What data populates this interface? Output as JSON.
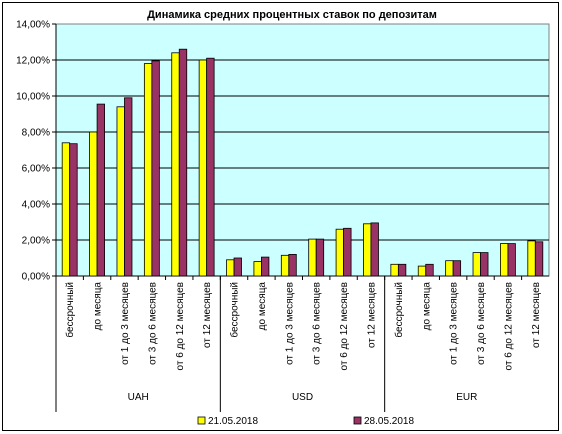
{
  "chart_data": {
    "type": "bar",
    "title": "Динамика средних процентных ставок по депозитам",
    "xlabel": "",
    "ylabel": "",
    "ylim": [
      0,
      14
    ],
    "y_ticks": [
      "0,00%",
      "2,00%",
      "4,00%",
      "6,00%",
      "8,00%",
      "10,00%",
      "12,00%",
      "14,00%"
    ],
    "grid": true,
    "legend_position": "bottom",
    "groups": [
      "UAH",
      "USD",
      "EUR"
    ],
    "categories": [
      "бессрочный",
      "до месяца",
      "от 1 до 3 месяцев",
      "от 3 до 6 месяцев",
      "от 6 до 12 месяцев",
      "от 12 месяцев"
    ],
    "series": [
      {
        "name": "21.05.2018",
        "color": "#ffff00",
        "values": [
          [
            7.4,
            8.0,
            9.4,
            11.8,
            12.4,
            12.0
          ],
          [
            0.9,
            0.8,
            1.15,
            2.05,
            2.6,
            2.9
          ],
          [
            0.65,
            0.55,
            0.85,
            1.3,
            1.8,
            1.95
          ]
        ]
      },
      {
        "name": "28.05.2018",
        "color": "#993366",
        "values": [
          [
            7.35,
            9.55,
            9.9,
            11.95,
            12.6,
            12.1
          ],
          [
            1.0,
            1.05,
            1.2,
            2.05,
            2.65,
            2.95
          ],
          [
            0.65,
            0.65,
            0.85,
            1.3,
            1.8,
            1.9
          ]
        ]
      }
    ],
    "plot_background": "#ccffff"
  }
}
